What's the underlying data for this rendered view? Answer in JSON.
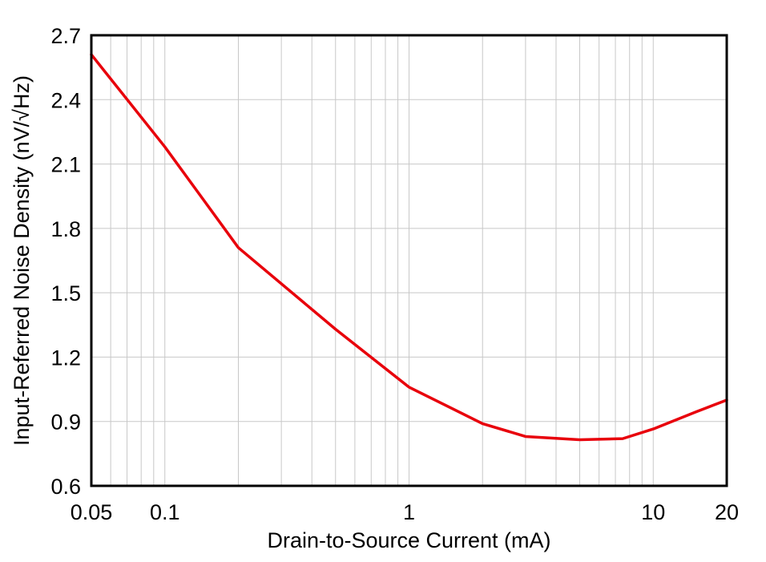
{
  "chart_data": {
    "type": "line",
    "title": "",
    "xlabel": "Drain-to-Source Current (mA)",
    "ylabel": "Input-Referred Noise Density (nV/√Hz)",
    "xscale": "log",
    "xlim": [
      0.05,
      20
    ],
    "ylim": [
      0.6,
      2.7
    ],
    "x_ticks": [
      {
        "value": 0.05,
        "label": "0.05"
      },
      {
        "value": 0.1,
        "label": "0.1"
      },
      {
        "value": 1,
        "label": "1"
      },
      {
        "value": 10,
        "label": "10"
      },
      {
        "value": 20,
        "label": "20"
      }
    ],
    "y_ticks": [
      {
        "value": 0.6,
        "label": "0.6"
      },
      {
        "value": 0.9,
        "label": "0.9"
      },
      {
        "value": 1.2,
        "label": "1.2"
      },
      {
        "value": 1.5,
        "label": "1.5"
      },
      {
        "value": 1.8,
        "label": "1.8"
      },
      {
        "value": 2.1,
        "label": "2.1"
      },
      {
        "value": 2.4,
        "label": "2.4"
      },
      {
        "value": 2.7,
        "label": "2.7"
      }
    ],
    "grid": true,
    "legend": "none",
    "series": [
      {
        "color": "#e8000b",
        "x": [
          0.05,
          0.1,
          0.2,
          0.5,
          1,
          2,
          3,
          5,
          7.5,
          10,
          15,
          20
        ],
        "y": [
          2.61,
          2.18,
          1.71,
          1.33,
          1.06,
          0.89,
          0.83,
          0.815,
          0.82,
          0.865,
          0.945,
          1.0
        ]
      }
    ]
  }
}
